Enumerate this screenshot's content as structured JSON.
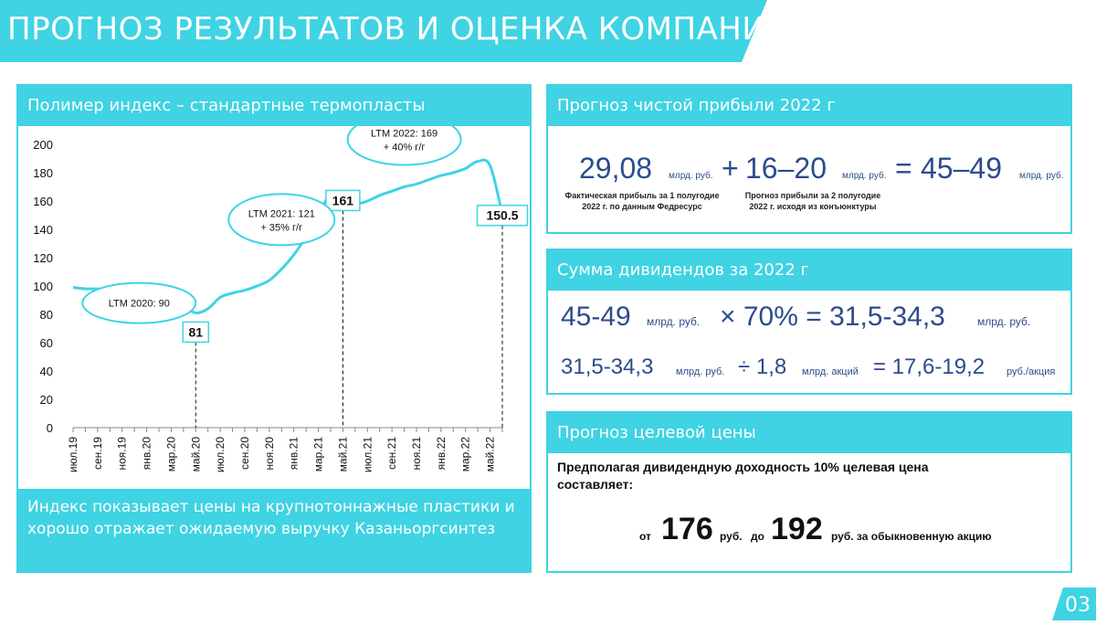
{
  "header": {
    "title": "ПРОГНОЗ РЕЗУЛЬТАТОВ И ОЦЕНКА КОМПАНИИ"
  },
  "chart_panel": {
    "title": "Полимер индекс – стандартные термопласты",
    "caption": "Индекс показывает цены на крупнотоннажные пластики и хорошо отражает ожидаемую выручку Казаньоргсинтез"
  },
  "chart_data": {
    "type": "line",
    "title": "Полимер индекс – стандартные термопласты",
    "x": [
      "июл.19",
      "авг.19",
      "сен.19",
      "окт.19",
      "ноя.19",
      "дек.19",
      "янв.20",
      "фев.20",
      "мар.20",
      "апр.20",
      "май.20",
      "июн.20",
      "июл.20",
      "авг.20",
      "сен.20",
      "окт.20",
      "ноя.20",
      "дек.20",
      "янв.21",
      "фев.21",
      "мар.21",
      "апр.21",
      "май.21",
      "июн.21",
      "июл.21",
      "авг.21",
      "сен.21",
      "окт.21",
      "ноя.21",
      "дек.21",
      "янв.22",
      "фев.22",
      "мар.22",
      "апр.22",
      "май.22",
      "июн.22"
    ],
    "xticklabels": [
      "июл.19",
      "сен.19",
      "ноя.19",
      "янв.20",
      "мар.20",
      "май.20",
      "июл.20",
      "сен.20",
      "ноя.20",
      "янв.21",
      "мар.21",
      "май.21",
      "июл.21",
      "сен.21",
      "ноя.21",
      "янв.22",
      "мар.22",
      "май.22"
    ],
    "series": [
      {
        "values": [
          99,
          98,
          98,
          97,
          96,
          95,
          94,
          93,
          92,
          86,
          81,
          84,
          92,
          95,
          97,
          100,
          104,
          112,
          122,
          135,
          150,
          165,
          161,
          158,
          160,
          164,
          167,
          170,
          172,
          175,
          178,
          180,
          183,
          188,
          185,
          150.5
        ]
      }
    ],
    "ylim": [
      0,
      200
    ],
    "yticks": [
      0,
      20,
      40,
      60,
      80,
      100,
      120,
      140,
      160,
      180,
      200
    ],
    "grid": false,
    "value_labels": [
      {
        "x": "май.20",
        "text": "81"
      },
      {
        "x": "май.21",
        "text": "161"
      },
      {
        "x": "июн.22",
        "text": "150.5"
      }
    ],
    "annotations": [
      {
        "x": "окт.19",
        "text": "LTM 2020: 90"
      },
      {
        "x": "дек.20",
        "text": "LTM 2021: 121 + 35% г/г"
      },
      {
        "x": "окт.21",
        "text": "LTM 2022: 169 + 40% г/г"
      }
    ],
    "colors": {
      "line": "#3fd3e3",
      "text": "#111111"
    }
  },
  "net_profit": {
    "title": "Прогноз чистой прибыли 2022 г",
    "fact_value": "29,08",
    "fact_unit": "млрд. руб.",
    "fact_note": "Фактическая прибыль за 1 полугодие 2022 г. по данным Федресурс",
    "plus": "+",
    "forecast_value": "16–20",
    "forecast_unit": "млрд. руб.",
    "forecast_note": "Прогноз прибыли за 2 полугодие 2022 г. исходя из конъюнктуры",
    "equals": "=",
    "total_value": "45–49",
    "total_unit": "млрд. руб."
  },
  "dividends": {
    "title": "Сумма дивидендов за 2022 г",
    "row1": {
      "a": "45-49",
      "a_unit": "млрд. руб.",
      "op": "× 70% = 31,5-34,3",
      "b_unit": "млрд. руб."
    },
    "row2": {
      "a": "31,5-34,3",
      "a_unit": "млрд. руб.",
      "op": "÷ 1,8",
      "op_unit": "млрд. акций",
      "eq": "= 17,6-19,2",
      "eq_unit": "руб./акция"
    }
  },
  "target_price": {
    "title": "Прогноз целевой цены",
    "text": "Предполагая дивидендную доходность 10% целевая цена составляет:",
    "from_label": "от",
    "from_value": "176",
    "from_unit": "руб.",
    "to_label": "до",
    "to_value": "192",
    "to_unit": "руб. за обыкновенную акцию"
  },
  "page": {
    "number": "03"
  },
  "colors": {
    "accent": "#3fd3e3",
    "navy": "#2b4c8c"
  }
}
